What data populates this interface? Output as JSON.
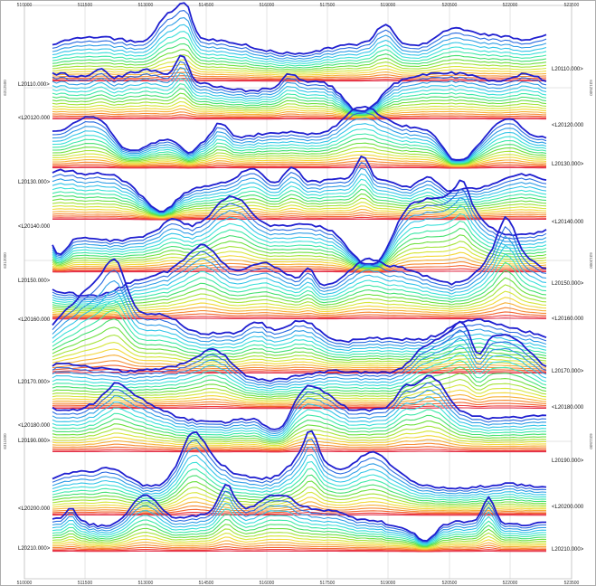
{
  "chart_data": {
    "type": "line",
    "x_ticks_top": [
      "510000",
      "511500",
      "513000",
      "514500",
      "516000",
      "517500",
      "519000",
      "520500",
      "522000",
      "523500"
    ],
    "x_ticks_bottom": [
      "510000",
      "511500",
      "513000",
      "514500",
      "516000",
      "517500",
      "519000",
      "520500",
      "522000",
      "523500"
    ],
    "y_ticks_left": [
      "6312500",
      "6312000",
      "6311500"
    ],
    "y_ticks_right": [
      "6312500",
      "6312000",
      "6311500"
    ],
    "xlim": [
      510000,
      523500
    ],
    "line_labels": [
      {
        "text": "L20110.000>",
        "side": "right"
      },
      {
        "text": "L20110.000>",
        "side": "left"
      },
      {
        "text": "<L20120.000",
        "side": "left"
      },
      {
        "text": "<L20120.000",
        "side": "right"
      },
      {
        "text": "L20130.000>",
        "side": "right"
      },
      {
        "text": "L20130.000>",
        "side": "left"
      },
      {
        "text": "<L20140.000",
        "side": "left"
      },
      {
        "text": "<L20140.000",
        "side": "right"
      },
      {
        "text": "L20150.000>",
        "side": "left"
      },
      {
        "text": "L20150.000>",
        "side": "right"
      },
      {
        "text": "<L20160.000",
        "side": "left"
      },
      {
        "text": "<L20160.000",
        "side": "right"
      },
      {
        "text": "L20170.000>",
        "side": "right"
      },
      {
        "text": "L20170.000>",
        "side": "left"
      },
      {
        "text": "<L20180.000",
        "side": "right"
      },
      {
        "text": "<L20180.000",
        "side": "left"
      },
      {
        "text": "L20190.000>",
        "side": "left"
      },
      {
        "text": "L20190.000>",
        "side": "right"
      },
      {
        "text": "<L20200.000",
        "side": "left"
      },
      {
        "text": "<L20200.000",
        "side": "right"
      },
      {
        "text": "L20210.000>",
        "side": "left"
      },
      {
        "text": "L20210.000>",
        "side": "right"
      }
    ],
    "channel_colors": [
      "#1f1fd0",
      "#2a6be0",
      "#2f9de6",
      "#33c4e8",
      "#3be0d8",
      "#3fe8a8",
      "#46e070",
      "#6fe040",
      "#a6e33a",
      "#d6e63a",
      "#f2d83a",
      "#f6b038",
      "#f58a34",
      "#f26430",
      "#ee3c3c",
      "#e0304c"
    ],
    "grid": true
  }
}
